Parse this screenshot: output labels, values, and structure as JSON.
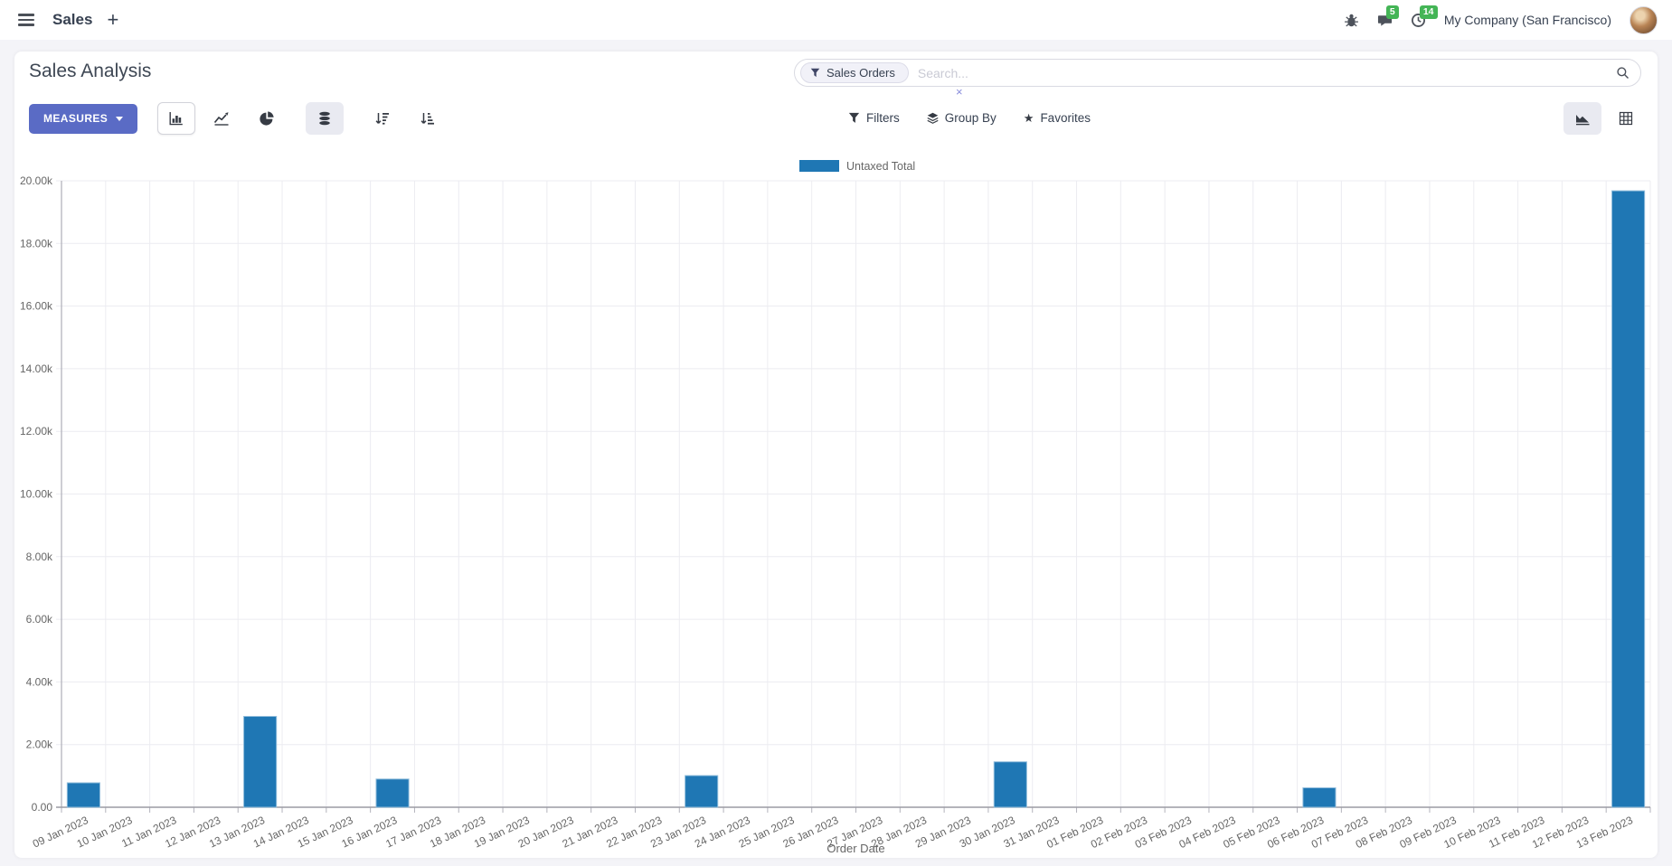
{
  "navbar": {
    "app_name": "Sales",
    "plus_label": "+",
    "message_badge": "5",
    "activity_badge": "14",
    "company": "My Company (San Francisco)"
  },
  "control_panel": {
    "title": "Sales Analysis",
    "measures_label": "MEASURES",
    "search": {
      "facet": "Sales Orders",
      "facet_close": "×",
      "placeholder": "Search..."
    },
    "filters_label": "Filters",
    "group_by_label": "Group By",
    "favorites_label": "Favorites"
  },
  "icons": {
    "app_menu": "hamburger-icon",
    "debug": "bug-icon",
    "messages": "chat-bubble-icon",
    "activities": "clock-icon",
    "facet_filter": "funnel-icon",
    "search": "magnifier-icon",
    "chart_bar": "bar-chart-icon",
    "chart_line": "line-chart-icon",
    "chart_pie": "pie-chart-icon",
    "stacked": "database-icon",
    "sort_desc": "sort-amount-desc-icon",
    "sort_asc": "sort-amount-asc-icon",
    "filters": "funnel-icon",
    "group_by": "layers-icon",
    "favorites": "star-icon",
    "view_graph": "area-chart-icon",
    "view_pivot": "table-grid-icon"
  },
  "colors": {
    "primary": "#5a6bc5",
    "bar": "#1f77b4",
    "bar_border": "#8fbcdb",
    "badge_green": "#44b556",
    "grid": "#ececf1",
    "axis": "#b3b3bc",
    "baseline": "#9b9ba4",
    "tick_text": "#666666"
  },
  "chart_data": {
    "type": "bar",
    "title": "",
    "xlabel": "Order Date",
    "ylabel": "",
    "legend": [
      "Untaxed Total"
    ],
    "legend_position": "top-center",
    "grid": true,
    "series_color": "#1f77b4",
    "series_border": "#8fbcdb",
    "ylim": [
      0,
      20000
    ],
    "ytick_step": 2000,
    "ytick_labels": [
      "0.00",
      "2.00k",
      "4.00k",
      "6.00k",
      "8.00k",
      "10.00k",
      "12.00k",
      "14.00k",
      "16.00k",
      "18.00k",
      "20.00k"
    ],
    "categories": [
      "09 Jan 2023",
      "10 Jan 2023",
      "11 Jan 2023",
      "12 Jan 2023",
      "13 Jan 2023",
      "14 Jan 2023",
      "15 Jan 2023",
      "16 Jan 2023",
      "17 Jan 2023",
      "18 Jan 2023",
      "19 Jan 2023",
      "20 Jan 2023",
      "21 Jan 2023",
      "22 Jan 2023",
      "23 Jan 2023",
      "24 Jan 2023",
      "25 Jan 2023",
      "26 Jan 2023",
      "27 Jan 2023",
      "28 Jan 2023",
      "29 Jan 2023",
      "30 Jan 2023",
      "31 Jan 2023",
      "01 Feb 2023",
      "02 Feb 2023",
      "03 Feb 2023",
      "04 Feb 2023",
      "05 Feb 2023",
      "06 Feb 2023",
      "07 Feb 2023",
      "08 Feb 2023",
      "09 Feb 2023",
      "10 Feb 2023",
      "11 Feb 2023",
      "12 Feb 2023",
      "13 Feb 2023"
    ],
    "values": [
      780,
      0,
      0,
      0,
      2900,
      0,
      0,
      900,
      0,
      0,
      0,
      0,
      0,
      0,
      1010,
      0,
      0,
      0,
      0,
      0,
      0,
      1450,
      0,
      0,
      0,
      0,
      0,
      0,
      620,
      0,
      0,
      0,
      0,
      0,
      0,
      19680
    ]
  }
}
